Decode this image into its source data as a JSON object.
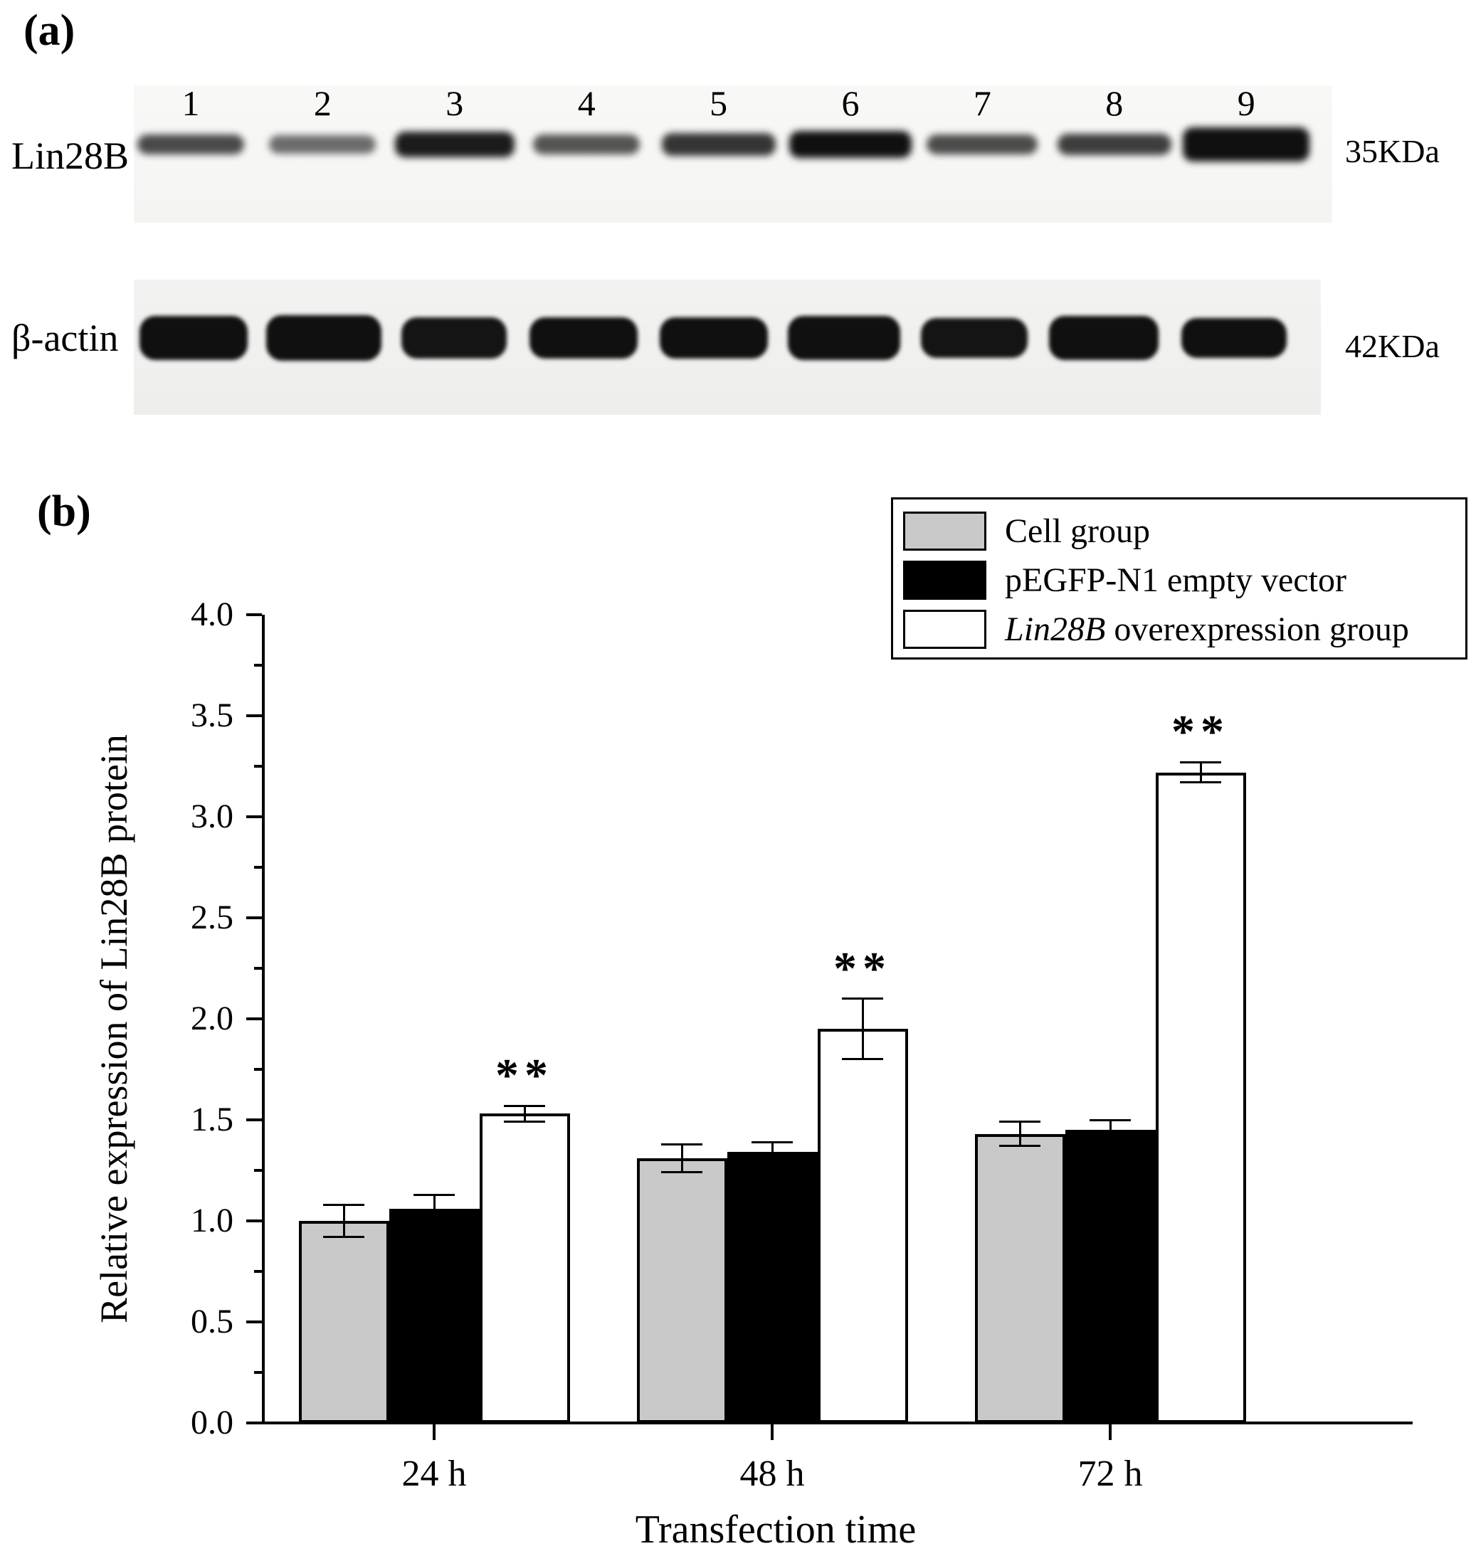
{
  "panel_a": {
    "label": "(a)",
    "lanes": [
      "1",
      "2",
      "3",
      "4",
      "5",
      "6",
      "7",
      "8",
      "9"
    ],
    "rows": [
      {
        "label": "Lin28B",
        "weight": "35KDa",
        "bands": [
          {
            "w": 150,
            "h": 28,
            "o": 0.75
          },
          {
            "w": 150,
            "h": 26,
            "o": 0.6
          },
          {
            "w": 168,
            "h": 36,
            "o": 0.95
          },
          {
            "w": 150,
            "h": 28,
            "o": 0.7
          },
          {
            "w": 160,
            "h": 32,
            "o": 0.84
          },
          {
            "w": 172,
            "h": 38,
            "o": 1.0
          },
          {
            "w": 156,
            "h": 28,
            "o": 0.74
          },
          {
            "w": 160,
            "h": 30,
            "o": 0.8
          },
          {
            "w": 178,
            "h": 48,
            "o": 1.0
          }
        ]
      },
      {
        "label": "β-actin",
        "weight": "42KDa",
        "bands": [
          {
            "w": 152,
            "h": 62,
            "o": 1.0
          },
          {
            "w": 162,
            "h": 64,
            "o": 1.0
          },
          {
            "w": 148,
            "h": 58,
            "o": 0.98
          },
          {
            "w": 152,
            "h": 58,
            "o": 1.0
          },
          {
            "w": 152,
            "h": 58,
            "o": 1.0
          },
          {
            "w": 158,
            "h": 62,
            "o": 1.0
          },
          {
            "w": 150,
            "h": 56,
            "o": 0.98
          },
          {
            "w": 154,
            "h": 62,
            "o": 1.0
          },
          {
            "w": 148,
            "h": 56,
            "o": 1.0
          }
        ]
      }
    ]
  },
  "panel_b": {
    "label": "(b)"
  },
  "chart_data": {
    "type": "bar",
    "categories": [
      "24 h",
      "48 h",
      "72 h"
    ],
    "series": [
      {
        "name": "Cell group",
        "fill": "#c9c9c9",
        "values": [
          1.0,
          1.31,
          1.43
        ],
        "errors": [
          0.08,
          0.07,
          0.06
        ]
      },
      {
        "name": "pEGFP-N1 empty vector",
        "fill": "#000000",
        "values": [
          1.06,
          1.34,
          1.45
        ],
        "errors": [
          0.07,
          0.05,
          0.05
        ]
      },
      {
        "name": "Lin28B overexpression group",
        "fill": "#ffffff",
        "values": [
          1.53,
          1.95,
          3.22
        ],
        "errors": [
          0.04,
          0.15,
          0.05
        ]
      }
    ],
    "significance": {
      "marker": "**",
      "series_index": 2,
      "marked": [
        true,
        true,
        true
      ]
    },
    "xlabel": "Transfection time",
    "ylabel": "Relative expression of Lin28B protein",
    "ylim": [
      0.0,
      4.0
    ],
    "ytick_step": 0.5,
    "ytick_labels": [
      "0.0",
      "0.5",
      "1.0",
      "1.5",
      "2.0",
      "2.5",
      "3.0",
      "3.5",
      "4.0"
    ],
    "grid": false,
    "legend": {
      "position": "top-right",
      "items": [
        {
          "em": "",
          "text": "Cell group"
        },
        {
          "em": "",
          "text": "pEGFP-N1 empty vector"
        },
        {
          "em": "Lin28B",
          "text": " overexpression group"
        }
      ]
    }
  }
}
